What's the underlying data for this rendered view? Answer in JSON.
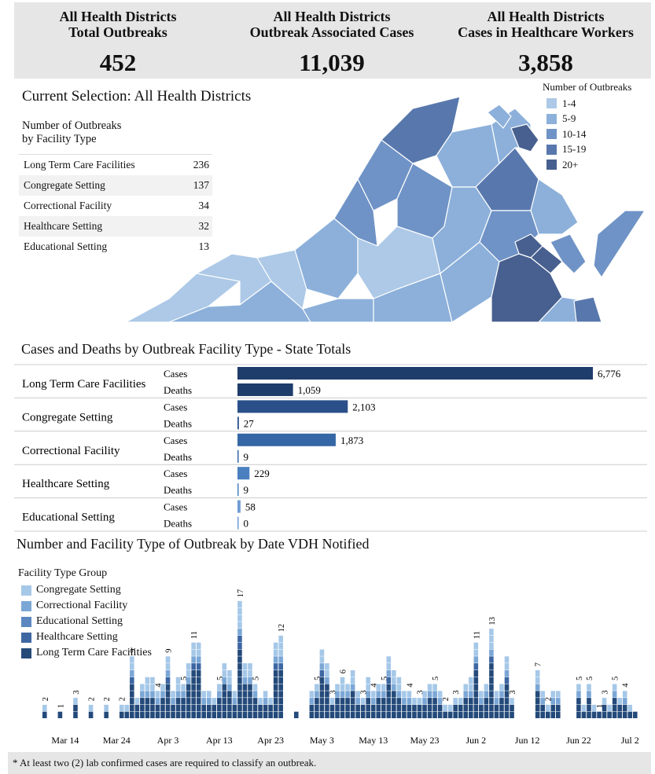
{
  "kpis": [
    {
      "title_line1": "All Health Districts",
      "title_line2": "Total Outbreaks",
      "value": "452"
    },
    {
      "title_line1": "All Health Districts",
      "title_line2": "Outbreak Associated Cases",
      "value": "11,039"
    },
    {
      "title_line1": "All Health Districts",
      "title_line2": "Cases in Healthcare Workers",
      "value": "3,858"
    }
  ],
  "selection_title": "Current Selection: All Health Districts",
  "facility_table": {
    "title_line1": "Number of Outbreaks",
    "title_line2": "by Facility Type",
    "rows": [
      {
        "label": "Long Term Care Facilities",
        "value": "236"
      },
      {
        "label": "Congregate Setting",
        "value": "137"
      },
      {
        "label": "Correctional Facility",
        "value": "34"
      },
      {
        "label": "Healthcare Setting",
        "value": "32"
      },
      {
        "label": "Educational Setting",
        "value": "13"
      }
    ]
  },
  "map_legend": {
    "title": "Number of Outbreaks",
    "items": [
      {
        "label": "1-4",
        "color": "#adc9e7"
      },
      {
        "label": "5-9",
        "color": "#8cb0da"
      },
      {
        "label": "10-14",
        "color": "#6f93c6"
      },
      {
        "label": "15-19",
        "color": "#5878ad"
      },
      {
        "label": "20+",
        "color": "#48608f"
      }
    ]
  },
  "section_cases_deaths": "Cases and Deaths by Outbreak Facility Type - State Totals",
  "section_daily": "Number and Facility Type of Outbreak by Date VDH Notified",
  "daily_legend": {
    "title": "Facility Type Group",
    "items": [
      {
        "label": "Congregate Setting",
        "color": "#a6c8e8"
      },
      {
        "label": "Correctional Facility",
        "color": "#7ba7d6"
      },
      {
        "label": "Educational Setting",
        "color": "#5b88c1"
      },
      {
        "label": "Healthcare Setting",
        "color": "#3d67a3"
      },
      {
        "label": "Long Term Care Facilities",
        "color": "#244a7a"
      }
    ]
  },
  "footnote": "* At least two (2) lab confirmed cases are required to classify an outbreak.",
  "chart_data": [
    {
      "type": "bar",
      "orientation": "horizontal",
      "title": "Cases and Deaths by Outbreak Facility Type - State Totals",
      "categories": [
        "Long Term Care Facilities",
        "Congregate Setting",
        "Correctional Facility",
        "Healthcare Setting",
        "Educational Setting"
      ],
      "series": [
        {
          "name": "Cases",
          "values": [
            6776,
            2103,
            1873,
            229,
            58
          ]
        },
        {
          "name": "Deaths",
          "values": [
            1059,
            27,
            9,
            9,
            0
          ]
        }
      ],
      "value_labels": {
        "Cases": [
          "6,776",
          "2,103",
          "1,873",
          "229",
          "58"
        ],
        "Deaths": [
          "1,059",
          "27",
          "9",
          "9",
          "0"
        ]
      },
      "colors": [
        "#1f3d6b",
        "#2b5089",
        "#3567a6",
        "#4a7fc0",
        "#6f9bd3"
      ]
    },
    {
      "type": "bar",
      "stacked": true,
      "title": "Number and Facility Type of Outbreak by Date VDH Notified",
      "xlabel": "",
      "ylabel": "",
      "x_tick_labels": [
        "Mar 14",
        "Mar 24",
        "Apr 3",
        "Apr 13",
        "Apr 23",
        "May 3",
        "May 13",
        "May 23",
        "Jun 2",
        "Jun 12",
        "Jun 22",
        "Jul 2"
      ],
      "x_start": "Mar 10",
      "x_end": "Jul 2",
      "series_order": [
        "Long Term Care Facilities",
        "Healthcare Setting",
        "Educational Setting",
        "Correctional Facility",
        "Congregate Setting"
      ],
      "totals": [
        2,
        0,
        0,
        1,
        0,
        0,
        3,
        0,
        0,
        2,
        0,
        0,
        2,
        0,
        0,
        2,
        2,
        9,
        3,
        5,
        6,
        6,
        4,
        5,
        9,
        4,
        6,
        5,
        8,
        11,
        11,
        4,
        4,
        3,
        5,
        8,
        7,
        4,
        17,
        8,
        8,
        5,
        3,
        4,
        3,
        11,
        12,
        0,
        0,
        1,
        0,
        0,
        4,
        5,
        10,
        8,
        3,
        5,
        6,
        5,
        7,
        4,
        3,
        6,
        4,
        5,
        5,
        9,
        7,
        6,
        4,
        4,
        3,
        3,
        4,
        5,
        5,
        4,
        2,
        2,
        3,
        3,
        5,
        6,
        11,
        4,
        5,
        13,
        4,
        5,
        9,
        3,
        0,
        0,
        0,
        0,
        7,
        4,
        2,
        4,
        4,
        0,
        0,
        0,
        5,
        2,
        5,
        2,
        1,
        3,
        2,
        5,
        3,
        4,
        2,
        1
      ],
      "labeled_peaks": [
        {
          "date": "Mar 10",
          "value": 2
        },
        {
          "date": "Mar 13",
          "value": 1
        },
        {
          "date": "Mar 16",
          "value": 3
        },
        {
          "date": "Mar 19",
          "value": 2
        },
        {
          "date": "Mar 22",
          "value": 2
        },
        {
          "date": "Mar 25",
          "value": 2
        },
        {
          "date": "Mar 27",
          "value": 9
        },
        {
          "date": "Apr 1",
          "value": 6
        },
        {
          "date": "Apr 3",
          "value": 9
        },
        {
          "date": "Apr 6",
          "value": 6
        },
        {
          "date": "Apr 9",
          "value": 11
        },
        {
          "date": "Apr 15",
          "value": 8
        },
        {
          "date": "Apr 17",
          "value": 17
        },
        {
          "date": "Apr 20",
          "value": 5
        },
        {
          "date": "Apr 25",
          "value": 12
        },
        {
          "date": "Apr 28",
          "value": 1
        },
        {
          "date": "May 3",
          "value": 10
        },
        {
          "date": "May 6",
          "value": 6
        },
        {
          "date": "May 8",
          "value": 7
        },
        {
          "date": "May 12",
          "value": 6
        },
        {
          "date": "May 14",
          "value": 9
        },
        {
          "date": "May 16",
          "value": 7
        },
        {
          "date": "May 21",
          "value": 5
        },
        {
          "date": "May 23",
          "value": 4
        },
        {
          "date": "May 26",
          "value": 2
        },
        {
          "date": "May 28",
          "value": 5
        },
        {
          "date": "May 30",
          "value": 11
        },
        {
          "date": "Jun 2",
          "value": 13
        },
        {
          "date": "Jun 5",
          "value": 9
        },
        {
          "date": "Jun 10",
          "value": 7
        },
        {
          "date": "Jun 12",
          "value": 4
        },
        {
          "date": "Jun 18",
          "value": 5
        },
        {
          "date": "Jun 20",
          "value": 5
        },
        {
          "date": "Jun 22",
          "value": 1
        },
        {
          "date": "Jun 23",
          "value": 5
        },
        {
          "date": "Jun 25",
          "value": 4
        },
        {
          "date": "Jun 27",
          "value": 1
        }
      ]
    }
  ]
}
